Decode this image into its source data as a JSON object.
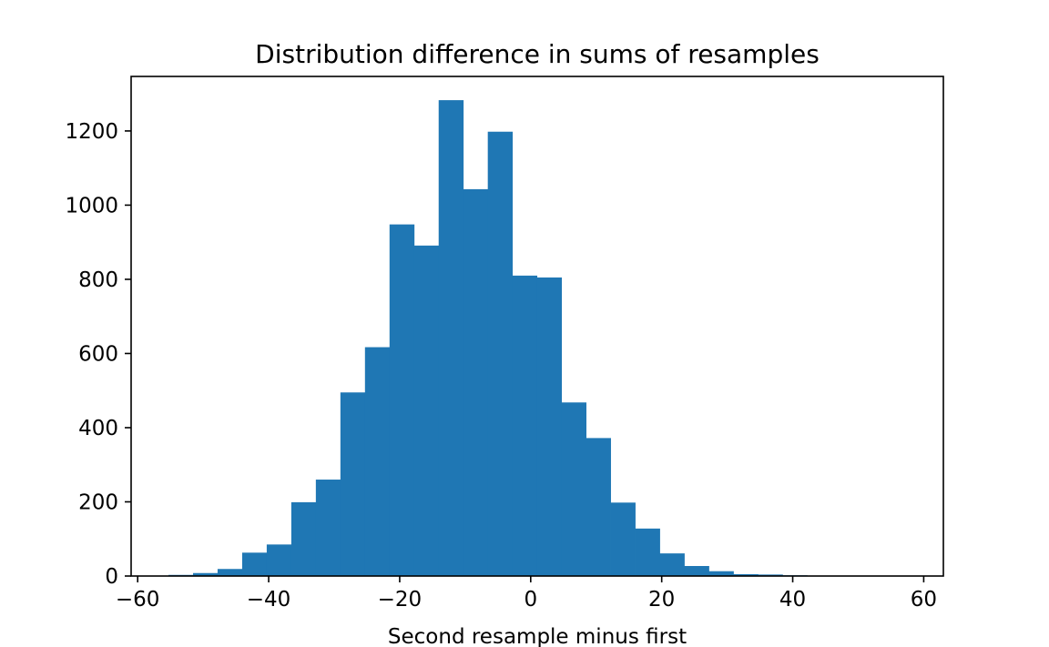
{
  "chart_data": {
    "type": "bar",
    "title": "Distribution difference in sums of resamples",
    "xlabel": "Second resample minus first",
    "ylabel": "",
    "bin_edges": [
      -55.3,
      -51.55,
      -47.8,
      -44.05,
      -40.3,
      -36.55,
      -32.8,
      -29.05,
      -25.3,
      -21.55,
      -17.8,
      -14.05,
      -10.3,
      -6.55,
      -2.8,
      0.95,
      4.7,
      8.45,
      12.2,
      15.95,
      19.7,
      23.45,
      27.2,
      30.95,
      34.7,
      38.45,
      42.2,
      45.95,
      49.7,
      53.45
    ],
    "values": [
      3,
      8,
      19,
      63,
      85,
      199,
      260,
      495,
      617,
      948,
      891,
      1283,
      1043,
      1198,
      810,
      805,
      468,
      372,
      198,
      128,
      61,
      27,
      13,
      5,
      4,
      2,
      1,
      1,
      0
    ],
    "xlim": [
      -61,
      63
    ],
    "ylim": [
      0,
      1347
    ],
    "xticks": [
      -60,
      -40,
      -20,
      0,
      20,
      40,
      60
    ],
    "xtick_labels": [
      "−60",
      "−40",
      "−20",
      "0",
      "20",
      "40",
      "60"
    ],
    "yticks": [
      0,
      200,
      400,
      600,
      800,
      1000,
      1200
    ],
    "ytick_labels": [
      "0",
      "200",
      "400",
      "600",
      "800",
      "1000",
      "1200"
    ],
    "grid": false,
    "bar_color": "#1f77b4"
  }
}
